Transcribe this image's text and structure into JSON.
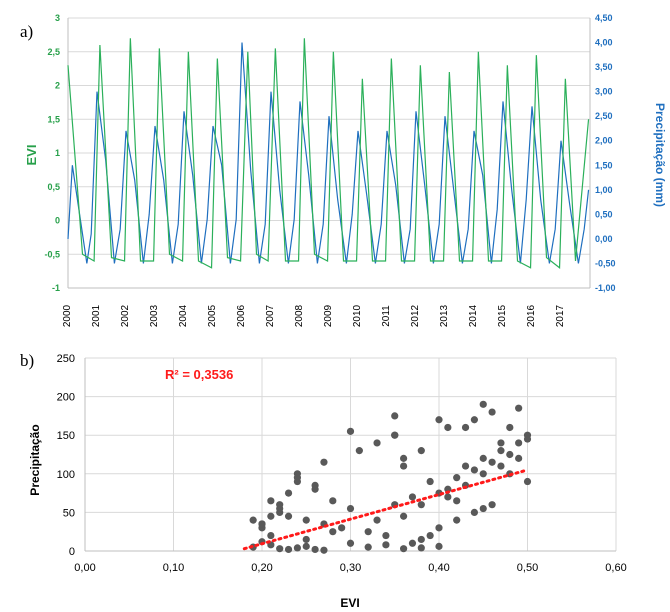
{
  "panels": {
    "a_label": "a)",
    "b_label": "b)"
  },
  "chart_data": [
    {
      "type": "line",
      "title": "",
      "xlabel": "",
      "ylabel": "EVI",
      "y2label": "Precipitação (mm)",
      "ylim": [
        -1,
        3
      ],
      "y2lim": [
        -1.0,
        4.5
      ],
      "yticks": [
        "-1",
        "-0,5",
        "0",
        "0,5",
        "1",
        "1,5",
        "2",
        "2,5",
        "3"
      ],
      "y2ticks": [
        "-1,00",
        "-0,50",
        "0,00",
        "0,50",
        "1,00",
        "1,50",
        "2,00",
        "2,50",
        "3,00",
        "3,50",
        "4,00",
        "4,50"
      ],
      "xticks": [
        "2000",
        "2001",
        "2002",
        "2003",
        "2004",
        "2005",
        "2006",
        "2007",
        "2008",
        "2009",
        "2010",
        "2011",
        "2012",
        "2013",
        "2014",
        "2015",
        "2016",
        "2017"
      ],
      "grid": "horizontal",
      "colors": {
        "evi": "#2bb05a",
        "precip": "#1f6fbf",
        "evi_axis": "#27a04a",
        "precip_axis": "#1f6fbf"
      },
      "series": [
        {
          "axis": "left",
          "x": [
            2000.0,
            2000.5,
            2000.9,
            2001.1,
            2001.5,
            2001.95,
            2002.15,
            2002.5,
            2002.95,
            2003.15,
            2003.5,
            2003.95,
            2004.15,
            2004.5,
            2004.95,
            2005.15,
            2005.5,
            2005.95,
            2006.2,
            2006.5,
            2006.9,
            2007.15,
            2007.5,
            2007.95,
            2008.15,
            2008.5,
            2008.95,
            2009.15,
            2009.5,
            2009.95,
            2010.15,
            2010.5,
            2010.95,
            2011.15,
            2011.5,
            2011.95,
            2012.15,
            2012.5,
            2012.95,
            2013.15,
            2013.5,
            2013.95,
            2014.15,
            2014.5,
            2014.95,
            2015.15,
            2015.5,
            2015.95,
            2016.15,
            2016.5,
            2016.95,
            2017.15,
            2017.5,
            2017.95
          ],
          "values": [
            2.3,
            -0.5,
            -0.6,
            2.6,
            -0.55,
            -0.6,
            2.7,
            -0.6,
            -0.6,
            2.55,
            -0.5,
            -0.6,
            2.5,
            -0.6,
            -0.7,
            2.4,
            -0.55,
            -0.6,
            2.5,
            -0.5,
            -0.6,
            2.55,
            -0.6,
            -0.6,
            2.7,
            -0.5,
            -0.6,
            2.5,
            -0.6,
            -0.6,
            2.1,
            -0.6,
            -0.6,
            2.4,
            -0.6,
            -0.6,
            2.3,
            -0.6,
            -0.6,
            2.2,
            -0.6,
            -0.6,
            2.5,
            -0.6,
            -0.6,
            2.3,
            -0.6,
            -0.7,
            2.45,
            -0.55,
            -0.7,
            2.1,
            -0.6,
            1.5
          ]
        },
        {
          "axis": "right",
          "x": [
            2000.0,
            2000.15,
            2000.4,
            2000.65,
            2000.8,
            2001.0,
            2001.3,
            2001.6,
            2001.8,
            2002.0,
            2002.3,
            2002.6,
            2002.8,
            2003.0,
            2003.3,
            2003.6,
            2003.8,
            2004.0,
            2004.3,
            2004.6,
            2004.8,
            2005.0,
            2005.3,
            2005.6,
            2005.8,
            2006.0,
            2006.3,
            2006.6,
            2006.8,
            2007.0,
            2007.3,
            2007.6,
            2007.8,
            2008.0,
            2008.3,
            2008.6,
            2008.8,
            2009.0,
            2009.3,
            2009.6,
            2009.8,
            2010.0,
            2010.3,
            2010.6,
            2010.8,
            2011.0,
            2011.3,
            2011.6,
            2011.8,
            2012.0,
            2012.3,
            2012.6,
            2012.8,
            2013.0,
            2013.3,
            2013.6,
            2013.8,
            2014.0,
            2014.3,
            2014.6,
            2014.8,
            2015.0,
            2015.3,
            2015.6,
            2015.8,
            2016.0,
            2016.3,
            2016.6,
            2016.8,
            2017.0,
            2017.3,
            2017.6,
            2017.8,
            2017.95
          ],
          "values": [
            0.0,
            1.5,
            0.5,
            -0.5,
            0.1,
            3.0,
            1.6,
            -0.5,
            0.2,
            2.2,
            1.2,
            -0.5,
            0.5,
            2.3,
            1.2,
            -0.5,
            0.3,
            2.6,
            1.3,
            -0.5,
            0.4,
            2.3,
            1.5,
            -0.5,
            0.4,
            4.0,
            1.4,
            -0.5,
            0.3,
            3.0,
            1.0,
            -0.5,
            0.4,
            2.8,
            1.3,
            -0.5,
            0.3,
            2.5,
            0.8,
            -0.5,
            0.5,
            2.2,
            0.9,
            -0.5,
            0.3,
            2.2,
            1.1,
            -0.5,
            0.2,
            2.6,
            1.1,
            -0.5,
            0.3,
            2.5,
            1.0,
            -0.5,
            0.2,
            2.2,
            1.3,
            -0.5,
            0.6,
            2.8,
            1.0,
            -0.5,
            0.8,
            2.7,
            0.8,
            -0.5,
            0.2,
            2.0,
            0.7,
            -0.5,
            0.2,
            1.0
          ]
        }
      ]
    },
    {
      "type": "scatter",
      "title": "",
      "xlabel": "EVI",
      "ylabel": "Precipitação",
      "xlim": [
        0.0,
        0.6
      ],
      "ylim": [
        0,
        250
      ],
      "xticks": [
        "0,00",
        "0,10",
        "0,20",
        "0,30",
        "0,40",
        "0,50",
        "0,60"
      ],
      "yticks": [
        "0",
        "50",
        "100",
        "150",
        "200",
        "250"
      ],
      "grid": "both",
      "annotation": "R² = 0,3536",
      "trendline": {
        "type": "linear",
        "x": [
          0.18,
          0.5
        ],
        "y": [
          3,
          105
        ]
      },
      "colors": {
        "points": "#595959",
        "trendline": "#ff1a1a"
      },
      "points": {
        "x": [
          0.19,
          0.2,
          0.21,
          0.22,
          0.23,
          0.24,
          0.25,
          0.26,
          0.27,
          0.2,
          0.21,
          0.22,
          0.23,
          0.24,
          0.21,
          0.25,
          0.28,
          0.3,
          0.32,
          0.34,
          0.36,
          0.38,
          0.4,
          0.19,
          0.2,
          0.22,
          0.24,
          0.26,
          0.28,
          0.3,
          0.33,
          0.35,
          0.37,
          0.39,
          0.41,
          0.43,
          0.45,
          0.47,
          0.49,
          0.5,
          0.42,
          0.44,
          0.46,
          0.48,
          0.36,
          0.38,
          0.4,
          0.43,
          0.45,
          0.47,
          0.49,
          0.31,
          0.33,
          0.35,
          0.41,
          0.44,
          0.46,
          0.48,
          0.39,
          0.4,
          0.42,
          0.44,
          0.46,
          0.37,
          0.38,
          0.34,
          0.32,
          0.29,
          0.27,
          0.25,
          0.23,
          0.22,
          0.21,
          0.2,
          0.35,
          0.36,
          0.4,
          0.43,
          0.45,
          0.47,
          0.49,
          0.5,
          0.24,
          0.26,
          0.3,
          0.27,
          0.38,
          0.35,
          0.42,
          0.48,
          0.5,
          0.45,
          0.41,
          0.36
        ],
        "y": [
          5,
          12,
          8,
          3,
          2,
          4,
          6,
          2,
          1,
          30,
          45,
          60,
          75,
          90,
          20,
          15,
          25,
          10,
          5,
          8,
          3,
          4,
          6,
          40,
          35,
          50,
          100,
          85,
          65,
          55,
          40,
          60,
          70,
          90,
          80,
          110,
          120,
          130,
          140,
          150,
          95,
          105,
          115,
          125,
          45,
          60,
          75,
          85,
          100,
          110,
          120,
          130,
          140,
          150,
          160,
          170,
          180,
          160,
          20,
          30,
          40,
          50,
          60,
          10,
          15,
          20,
          25,
          30,
          35,
          40,
          45,
          55,
          65,
          35,
          150,
          110,
          170,
          160,
          190,
          140,
          185,
          145,
          95,
          80,
          155,
          115,
          130,
          175,
          65,
          100,
          90,
          55,
          70,
          120
        ]
      }
    }
  ]
}
